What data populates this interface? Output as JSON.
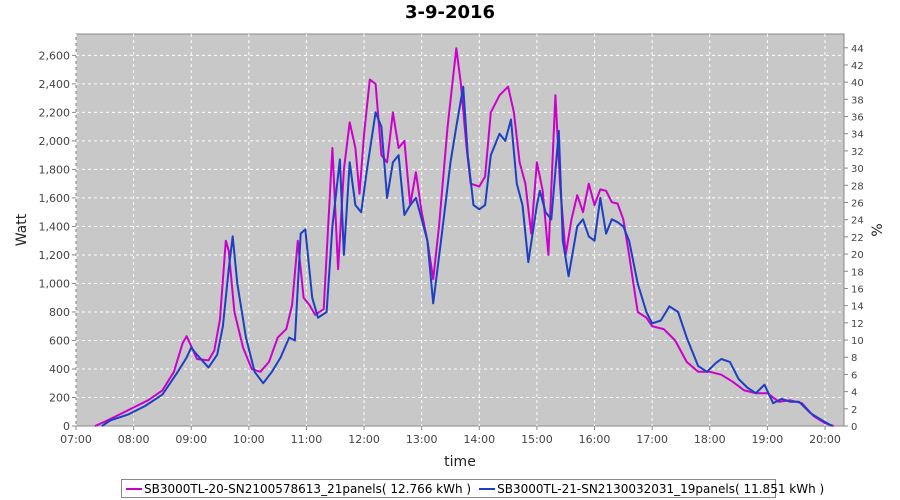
{
  "chart_data": {
    "type": "line",
    "title": "3-9-2016",
    "xlabel": "time",
    "ylabel": "Watt",
    "y2label": "%",
    "xlim": [
      7.0,
      20.33
    ],
    "ylim": [
      0,
      2750
    ],
    "y2lim": [
      0,
      45.6
    ],
    "x_ticks": [
      7,
      8,
      9,
      10,
      11,
      12,
      13,
      14,
      15,
      16,
      17,
      18,
      19,
      20
    ],
    "x_tick_labels": [
      "07:00",
      "08:00",
      "09:00",
      "10:00",
      "11:00",
      "12:00",
      "13:00",
      "14:00",
      "15:00",
      "16:00",
      "17:00",
      "18:00",
      "19:00",
      "20:00"
    ],
    "y_ticks": [
      0,
      200,
      400,
      600,
      800,
      1000,
      1200,
      1400,
      1600,
      1800,
      2000,
      2200,
      2400,
      2600
    ],
    "y_tick_labels": [
      "0",
      "200",
      "400",
      "600",
      "800",
      "1,000",
      "1,200",
      "1,400",
      "1,600",
      "1,800",
      "2,000",
      "2,200",
      "2,400",
      "2,600"
    ],
    "y2_ticks": [
      0,
      2,
      4,
      6,
      8,
      10,
      12,
      14,
      16,
      18,
      20,
      22,
      24,
      26,
      28,
      30,
      32,
      34,
      36,
      38,
      40,
      42,
      44
    ],
    "y2_tick_labels": [
      "0",
      "2",
      "4",
      "6",
      "8",
      "10",
      "12",
      "14",
      "16",
      "18",
      "20",
      "22",
      "24",
      "26",
      "28",
      "30",
      "32",
      "34",
      "36",
      "38",
      "40",
      "42",
      "44"
    ],
    "grid": true,
    "legend_position": "bottom",
    "series": [
      {
        "name": "SB3000TL-20-SN2100578613_21panels( 12.766 kWh )",
        "color": "#cc00cc",
        "points": [
          [
            7.33,
            0
          ],
          [
            7.5,
            30
          ],
          [
            7.75,
            80
          ],
          [
            8.0,
            130
          ],
          [
            8.25,
            180
          ],
          [
            8.5,
            250
          ],
          [
            8.7,
            380
          ],
          [
            8.85,
            580
          ],
          [
            8.92,
            630
          ],
          [
            9.0,
            560
          ],
          [
            9.1,
            470
          ],
          [
            9.3,
            460
          ],
          [
            9.4,
            530
          ],
          [
            9.5,
            750
          ],
          [
            9.6,
            1300
          ],
          [
            9.65,
            1230
          ],
          [
            9.75,
            800
          ],
          [
            9.9,
            550
          ],
          [
            10.05,
            400
          ],
          [
            10.2,
            380
          ],
          [
            10.35,
            450
          ],
          [
            10.5,
            620
          ],
          [
            10.65,
            680
          ],
          [
            10.75,
            850
          ],
          [
            10.85,
            1300
          ],
          [
            10.95,
            900
          ],
          [
            11.05,
            850
          ],
          [
            11.15,
            780
          ],
          [
            11.3,
            820
          ],
          [
            11.45,
            1950
          ],
          [
            11.55,
            1100
          ],
          [
            11.65,
            1800
          ],
          [
            11.75,
            2130
          ],
          [
            11.85,
            1950
          ],
          [
            11.92,
            1630
          ],
          [
            12.0,
            2050
          ],
          [
            12.1,
            2430
          ],
          [
            12.2,
            2400
          ],
          [
            12.3,
            1900
          ],
          [
            12.4,
            1850
          ],
          [
            12.5,
            2200
          ],
          [
            12.6,
            1950
          ],
          [
            12.7,
            2000
          ],
          [
            12.8,
            1550
          ],
          [
            12.9,
            1780
          ],
          [
            13.0,
            1500
          ],
          [
            13.1,
            1300
          ],
          [
            13.2,
            1030
          ],
          [
            13.3,
            1400
          ],
          [
            13.45,
            2100
          ],
          [
            13.6,
            2650
          ],
          [
            13.68,
            2400
          ],
          [
            13.78,
            1950
          ],
          [
            13.85,
            1700
          ],
          [
            14.0,
            1680
          ],
          [
            14.1,
            1750
          ],
          [
            14.2,
            2200
          ],
          [
            14.35,
            2320
          ],
          [
            14.5,
            2380
          ],
          [
            14.6,
            2200
          ],
          [
            14.7,
            1850
          ],
          [
            14.8,
            1700
          ],
          [
            14.9,
            1350
          ],
          [
            15.0,
            1850
          ],
          [
            15.1,
            1650
          ],
          [
            15.2,
            1200
          ],
          [
            15.32,
            2320
          ],
          [
            15.4,
            1700
          ],
          [
            15.5,
            1200
          ],
          [
            15.6,
            1450
          ],
          [
            15.7,
            1620
          ],
          [
            15.8,
            1500
          ],
          [
            15.9,
            1700
          ],
          [
            16.0,
            1550
          ],
          [
            16.1,
            1660
          ],
          [
            16.2,
            1650
          ],
          [
            16.3,
            1570
          ],
          [
            16.4,
            1560
          ],
          [
            16.5,
            1450
          ],
          [
            16.6,
            1200
          ],
          [
            16.75,
            800
          ],
          [
            16.9,
            760
          ],
          [
            17.0,
            700
          ],
          [
            17.2,
            680
          ],
          [
            17.4,
            600
          ],
          [
            17.6,
            450
          ],
          [
            17.8,
            380
          ],
          [
            18.0,
            380
          ],
          [
            18.2,
            360
          ],
          [
            18.4,
            310
          ],
          [
            18.6,
            250
          ],
          [
            18.8,
            230
          ],
          [
            19.0,
            230
          ],
          [
            19.2,
            170
          ],
          [
            19.4,
            180
          ],
          [
            19.6,
            160
          ],
          [
            19.8,
            70
          ],
          [
            20.0,
            20
          ],
          [
            20.15,
            0
          ]
        ]
      },
      {
        "name": "SB3000TL-21-SN2130032031_19panels( 11.851 kWh )",
        "color": "#1c3fc4",
        "points": [
          [
            7.45,
            0
          ],
          [
            7.6,
            40
          ],
          [
            7.9,
            80
          ],
          [
            8.2,
            140
          ],
          [
            8.5,
            220
          ],
          [
            8.75,
            370
          ],
          [
            8.92,
            480
          ],
          [
            9.0,
            550
          ],
          [
            9.1,
            500
          ],
          [
            9.3,
            410
          ],
          [
            9.45,
            500
          ],
          [
            9.55,
            700
          ],
          [
            9.65,
            1100
          ],
          [
            9.72,
            1330
          ],
          [
            9.8,
            1000
          ],
          [
            9.95,
            620
          ],
          [
            10.1,
            380
          ],
          [
            10.25,
            300
          ],
          [
            10.4,
            380
          ],
          [
            10.55,
            480
          ],
          [
            10.7,
            620
          ],
          [
            10.8,
            600
          ],
          [
            10.9,
            1350
          ],
          [
            10.98,
            1380
          ],
          [
            11.1,
            900
          ],
          [
            11.2,
            760
          ],
          [
            11.35,
            800
          ],
          [
            11.45,
            1400
          ],
          [
            11.58,
            1870
          ],
          [
            11.65,
            1200
          ],
          [
            11.75,
            1850
          ],
          [
            11.85,
            1550
          ],
          [
            11.95,
            1500
          ],
          [
            12.05,
            1800
          ],
          [
            12.2,
            2200
          ],
          [
            12.3,
            2100
          ],
          [
            12.4,
            1600
          ],
          [
            12.5,
            1850
          ],
          [
            12.6,
            1900
          ],
          [
            12.7,
            1480
          ],
          [
            12.8,
            1550
          ],
          [
            12.9,
            1600
          ],
          [
            13.0,
            1450
          ],
          [
            13.1,
            1300
          ],
          [
            13.2,
            860
          ],
          [
            13.35,
            1350
          ],
          [
            13.5,
            1850
          ],
          [
            13.6,
            2100
          ],
          [
            13.72,
            2380
          ],
          [
            13.8,
            1900
          ],
          [
            13.9,
            1550
          ],
          [
            14.0,
            1520
          ],
          [
            14.1,
            1550
          ],
          [
            14.2,
            1900
          ],
          [
            14.35,
            2050
          ],
          [
            14.45,
            2000
          ],
          [
            14.55,
            2150
          ],
          [
            14.65,
            1700
          ],
          [
            14.75,
            1550
          ],
          [
            14.85,
            1150
          ],
          [
            15.0,
            1550
          ],
          [
            15.05,
            1650
          ],
          [
            15.15,
            1500
          ],
          [
            15.25,
            1450
          ],
          [
            15.38,
            2070
          ],
          [
            15.45,
            1300
          ],
          [
            15.55,
            1050
          ],
          [
            15.7,
            1400
          ],
          [
            15.8,
            1450
          ],
          [
            15.9,
            1330
          ],
          [
            16.0,
            1300
          ],
          [
            16.1,
            1600
          ],
          [
            16.2,
            1350
          ],
          [
            16.3,
            1450
          ],
          [
            16.4,
            1430
          ],
          [
            16.5,
            1400
          ],
          [
            16.6,
            1300
          ],
          [
            16.75,
            1000
          ],
          [
            16.9,
            800
          ],
          [
            17.0,
            720
          ],
          [
            17.15,
            740
          ],
          [
            17.3,
            840
          ],
          [
            17.45,
            800
          ],
          [
            17.6,
            620
          ],
          [
            17.8,
            420
          ],
          [
            17.95,
            380
          ],
          [
            18.1,
            440
          ],
          [
            18.2,
            470
          ],
          [
            18.35,
            450
          ],
          [
            18.5,
            330
          ],
          [
            18.65,
            270
          ],
          [
            18.8,
            230
          ],
          [
            18.95,
            290
          ],
          [
            19.1,
            160
          ],
          [
            19.25,
            190
          ],
          [
            19.4,
            170
          ],
          [
            19.55,
            170
          ],
          [
            19.75,
            90
          ],
          [
            19.95,
            40
          ],
          [
            20.12,
            0
          ]
        ]
      }
    ]
  }
}
